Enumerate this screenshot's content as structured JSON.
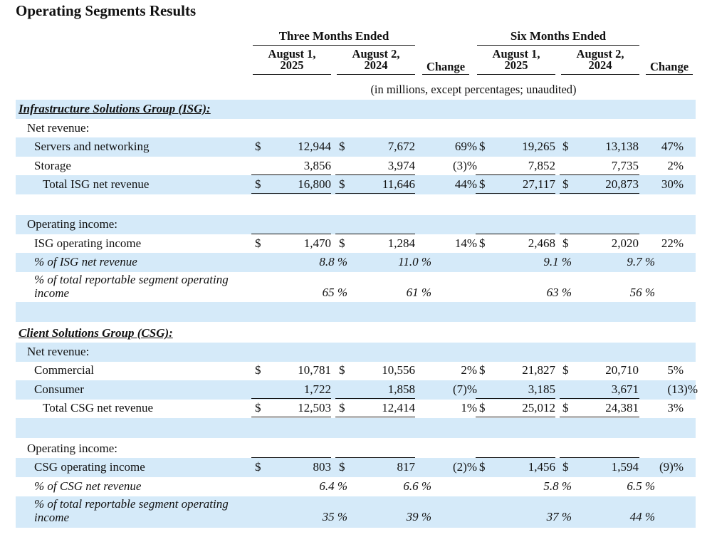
{
  "title": "Operating Segments Results",
  "headers": {
    "three_months": "Three Months Ended",
    "six_months": "Six Months Ended",
    "col1_l1": "August 1,",
    "col1_l2": "2025",
    "col2_l1": "August 2,",
    "col2_l2": "2024",
    "change": "Change",
    "col3_l1": "August 1,",
    "col3_l2": "2025",
    "col4_l1": "August 2,",
    "col4_l2": "2024",
    "subtitle": "(in millions, except percentages; unaudited)"
  },
  "isg": {
    "section": "Infrastructure Solutions Group (ISG):",
    "net_revenue": "Net revenue:",
    "rows": [
      {
        "label": "Servers and networking",
        "d1": "$",
        "v1": "12,944",
        "d2": "$",
        "v2": "7,672",
        "c1": "69%",
        "d3": "$",
        "v3": "19,265",
        "d4": "$",
        "v4": "13,138",
        "c2": "47%"
      },
      {
        "label": "Storage",
        "d1": "",
        "v1": "3,856",
        "d2": "",
        "v2": "3,974",
        "c1": "(3)%",
        "d3": "",
        "v3": "7,852",
        "d4": "",
        "v4": "7,735",
        "c2": "2%"
      },
      {
        "label": "Total ISG net revenue",
        "d1": "$",
        "v1": "16,800",
        "d2": "$",
        "v2": "11,646",
        "c1": "44%",
        "d3": "$",
        "v3": "27,117",
        "d4": "$",
        "v4": "20,873",
        "c2": "30%"
      }
    ],
    "operating_income": "Operating income:",
    "oi_row": {
      "label": "ISG operating income",
      "d1": "$",
      "v1": "1,470",
      "d2": "$",
      "v2": "1,284",
      "c1": "14%",
      "d3": "$",
      "v3": "2,468",
      "d4": "$",
      "v4": "2,020",
      "c2": "22%"
    },
    "pct_rev": {
      "label": "% of ISG net revenue",
      "v1": "8.8 %",
      "v2": "11.0 %",
      "v3": "9.1 %",
      "v4": "9.7 %"
    },
    "pct_total": {
      "label_l1": "% of total reportable segment operating",
      "label_l2": "income",
      "v1": "65 %",
      "v2": "61 %",
      "v3": "63 %",
      "v4": "56 %"
    }
  },
  "csg": {
    "section": "Client Solutions Group (CSG):",
    "net_revenue": "Net revenue:",
    "rows": [
      {
        "label": "Commercial",
        "d1": "$",
        "v1": "10,781",
        "d2": "$",
        "v2": "10,556",
        "c1": "2%",
        "d3": "$",
        "v3": "21,827",
        "d4": "$",
        "v4": "20,710",
        "c2": "5%"
      },
      {
        "label": "Consumer",
        "d1": "",
        "v1": "1,722",
        "d2": "",
        "v2": "1,858",
        "c1": "(7)%",
        "d3": "",
        "v3": "3,185",
        "d4": "",
        "v4": "3,671",
        "c2": "(13)%"
      },
      {
        "label": "Total CSG net revenue",
        "d1": "$",
        "v1": "12,503",
        "d2": "$",
        "v2": "12,414",
        "c1": "1%",
        "d3": "$",
        "v3": "25,012",
        "d4": "$",
        "v4": "24,381",
        "c2": "3%"
      }
    ],
    "operating_income": "Operating income:",
    "oi_row": {
      "label": "CSG operating income",
      "d1": "$",
      "v1": "803",
      "d2": "$",
      "v2": "817",
      "c1": "(2)%",
      "d3": "$",
      "v3": "1,456",
      "d4": "$",
      "v4": "1,594",
      "c2": "(9)%"
    },
    "pct_rev": {
      "label": "% of CSG net revenue",
      "v1": "6.4 %",
      "v2": "6.6 %",
      "v3": "5.8 %",
      "v4": "6.5 %"
    },
    "pct_total": {
      "label_l1": "% of total reportable segment operating",
      "label_l2": "income",
      "v1": "35 %",
      "v2": "39 %",
      "v3": "37 %",
      "v4": "44 %"
    }
  }
}
